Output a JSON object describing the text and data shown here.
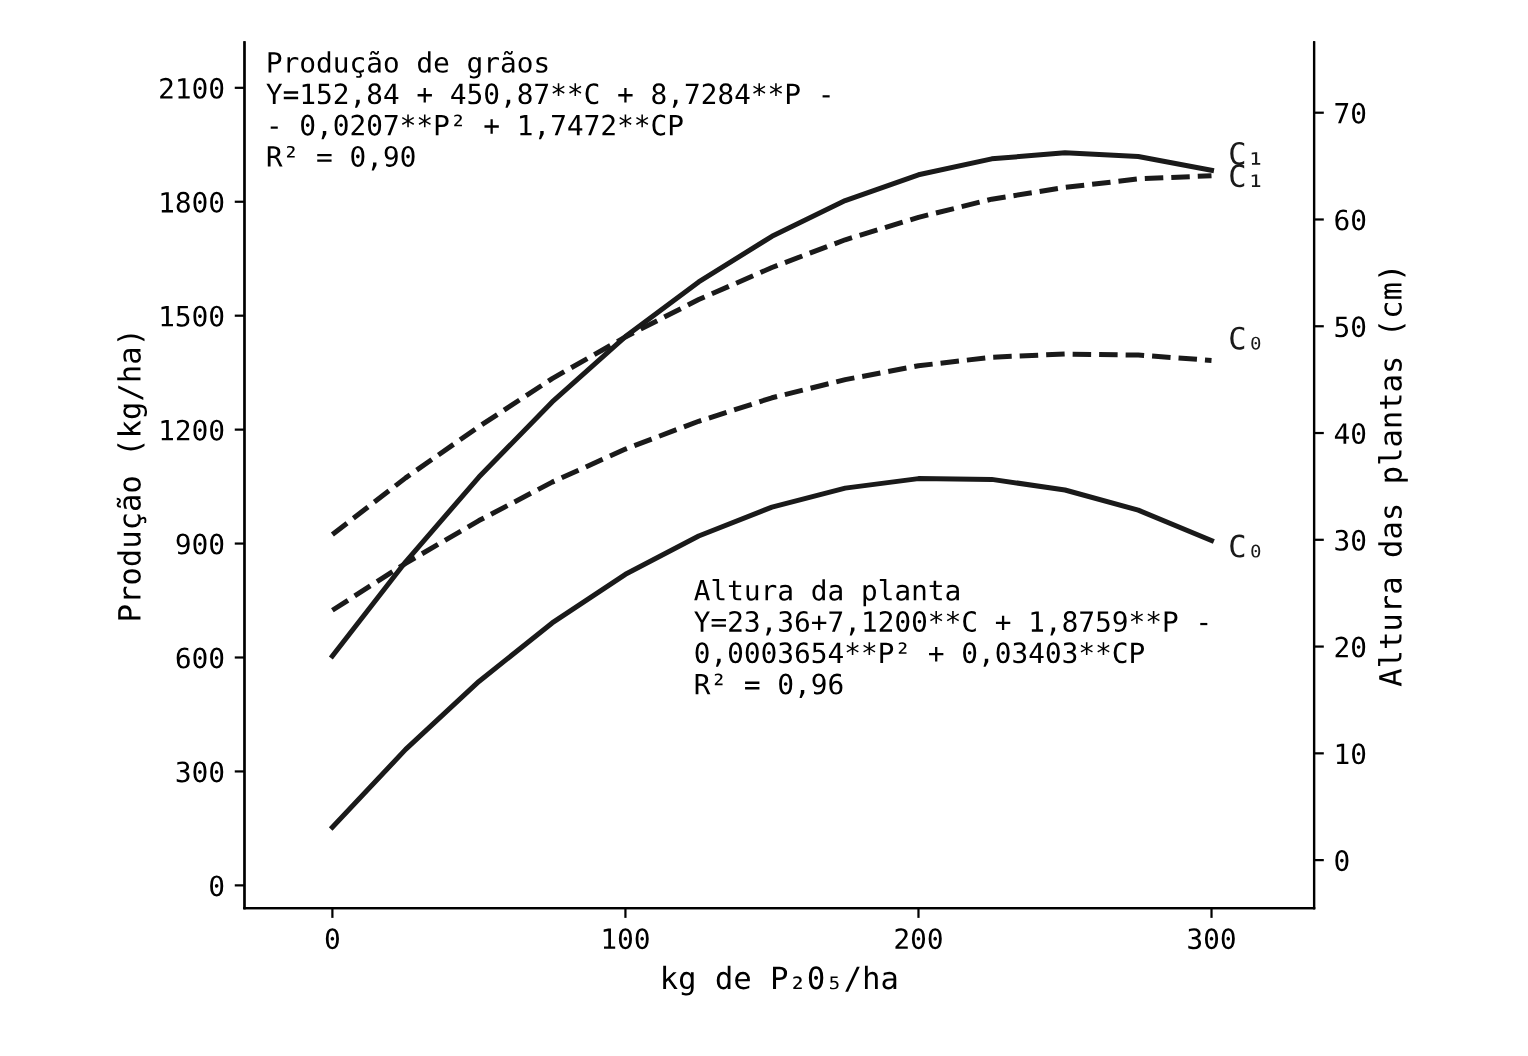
{
  "chart_data": {
    "type": "line",
    "xlabel": "kg de P₂0₅/ha",
    "ylabel": "Produção (kg/ha)",
    "y2label": "Altura das plantas (cm)",
    "x": [
      0,
      25,
      50,
      75,
      100,
      125,
      150,
      175,
      200,
      225,
      250,
      275,
      300
    ],
    "series": [
      {
        "name": "C₁",
        "color": "#1a1a1a",
        "line_style": "solid",
        "values": [
          604,
          852,
          1075,
          1273,
          1445,
          1589,
          1709,
          1803,
          1871,
          1913,
          1929,
          1919,
          1883
        ]
      },
      {
        "name": "C₀",
        "color": "#1a1a1a",
        "line_style": "solid",
        "values": [
          153,
          358,
          537,
          691,
          819,
          920,
          996,
          1046,
          1071,
          1069,
          1041,
          988,
          908
        ]
      },
      {
        "name": "C₁",
        "color": "#1a1a1a",
        "line_style": "dashed",
        "axis": "y2",
        "values": [
          30.5,
          35.8,
          40.6,
          45.1,
          49.0,
          52.5,
          55.5,
          58.1,
          60.2,
          61.9,
          63.0,
          63.8,
          64.1
        ]
      },
      {
        "name": "C₀",
        "color": "#1a1a1a",
        "line_style": "dashed",
        "axis": "y2",
        "values": [
          23.4,
          27.8,
          31.8,
          35.4,
          38.5,
          41.1,
          43.3,
          45.0,
          46.3,
          47.1,
          47.4,
          47.3,
          46.8
        ]
      }
    ],
    "xlim": [
      -30,
      335
    ],
    "xticks": [
      0,
      100,
      200,
      300
    ],
    "ylim": [
      -60,
      2220
    ],
    "yticks": [
      0,
      300,
      600,
      900,
      1200,
      1500,
      1800,
      2100
    ],
    "y2lim": [
      -4.5,
      76.6
    ],
    "y2ticks": [
      0,
      10,
      20,
      30,
      40,
      50,
      60,
      70
    ],
    "annotations": [
      "Produção de grãos\nY=152,84 + 450,87**C + 8,7284**P -\n- 0,0207**P² + 1,7472**CP\nR² = 0,90",
      "Altura da planta\nY=23,36+7,1200**C + 1,8759**P -\n0,0003654**P² + 0,03403**CP\nR² = 0,96"
    ],
    "grid": false,
    "legend": false,
    "marker": "none"
  }
}
